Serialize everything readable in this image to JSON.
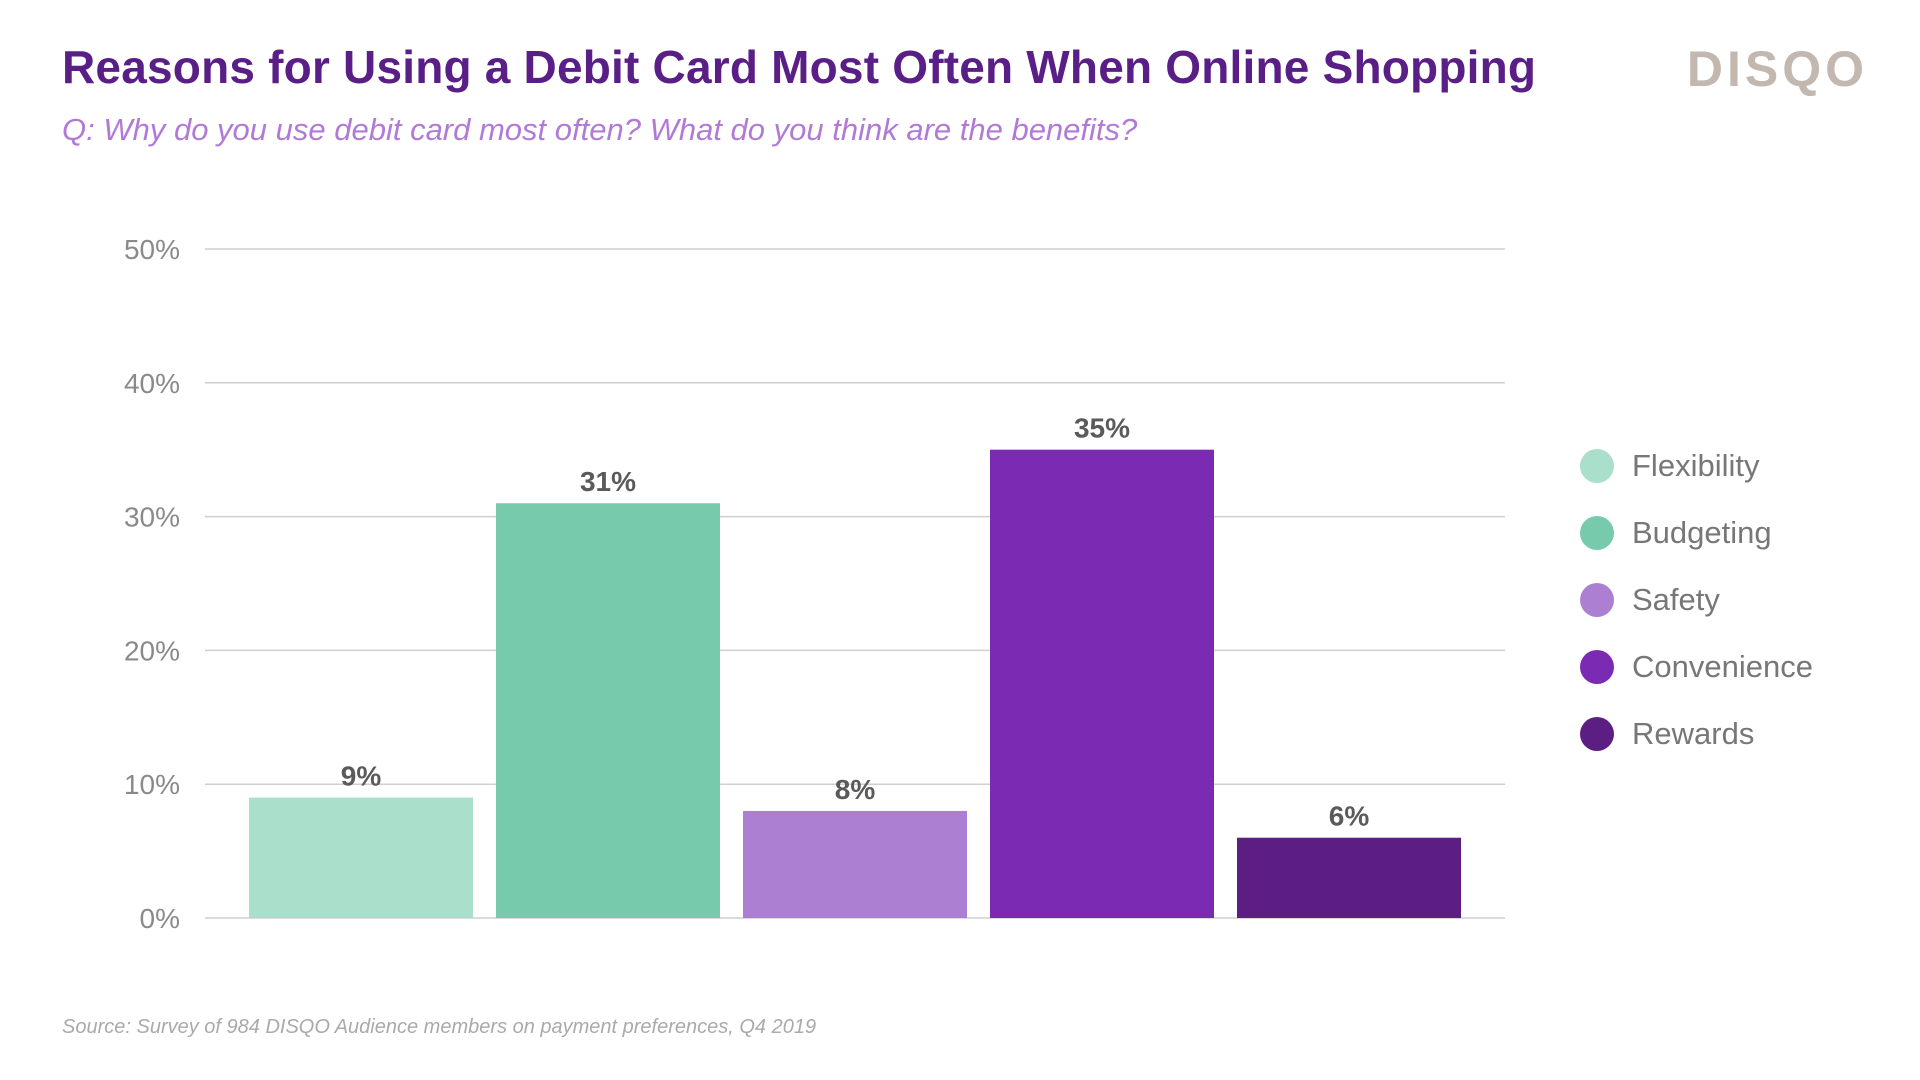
{
  "header": {
    "title": "Reasons for Using a Debit Card Most Often When Online Shopping",
    "subtitle": "Q: Why do you use debit card most often? What do you think are the benefits?",
    "brand": "DISQO"
  },
  "footer": {
    "source": "Source: Survey of 984 DISQO Audience members on payment preferences, Q4 2019"
  },
  "chart_data": {
    "type": "bar",
    "title": "Reasons for Using a Debit Card Most Often When Online Shopping",
    "subtitle": "Q: Why do you use debit card most often? What do you think are the benefits?",
    "categories": [
      "Flexibility",
      "Budgeting",
      "Safety",
      "Convenience",
      "Rewards"
    ],
    "values": [
      9,
      31,
      8,
      35,
      6
    ],
    "value_labels": [
      "9%",
      "31%",
      "8%",
      "35%",
      "6%"
    ],
    "colors": [
      "#a9dfcb",
      "#78caac",
      "#ad7fd2",
      "#7b2ab4",
      "#5c1e83"
    ],
    "ylim": [
      0,
      50
    ],
    "yticks": [
      0,
      10,
      20,
      30,
      40,
      50
    ],
    "ytick_labels": [
      "0%",
      "10%",
      "20%",
      "30%",
      "40%",
      "50%"
    ],
    "xlabel": "",
    "ylabel": "",
    "grid": true,
    "legend_position": "right"
  }
}
